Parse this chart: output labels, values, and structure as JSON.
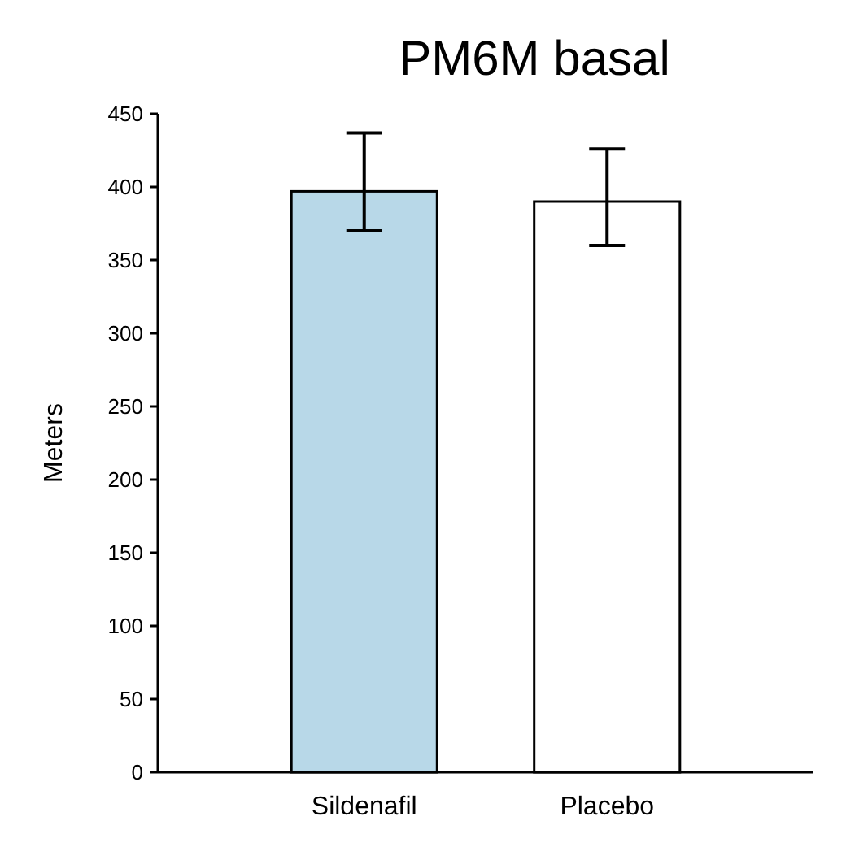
{
  "chart_data": {
    "type": "bar",
    "title": "PM6M basal",
    "ylabel": "Meters",
    "categories": [
      "Sildenafil",
      "Placebo"
    ],
    "values": [
      397,
      390
    ],
    "colors": [
      "#b8d8e8",
      "#ffffff"
    ],
    "errors": [
      [
        370,
        437
      ],
      [
        360,
        426
      ]
    ],
    "ylim": [
      0,
      450
    ],
    "yticks": [
      0,
      50,
      100,
      150,
      200,
      250,
      300,
      350,
      400,
      450
    ],
    "grid": false
  }
}
